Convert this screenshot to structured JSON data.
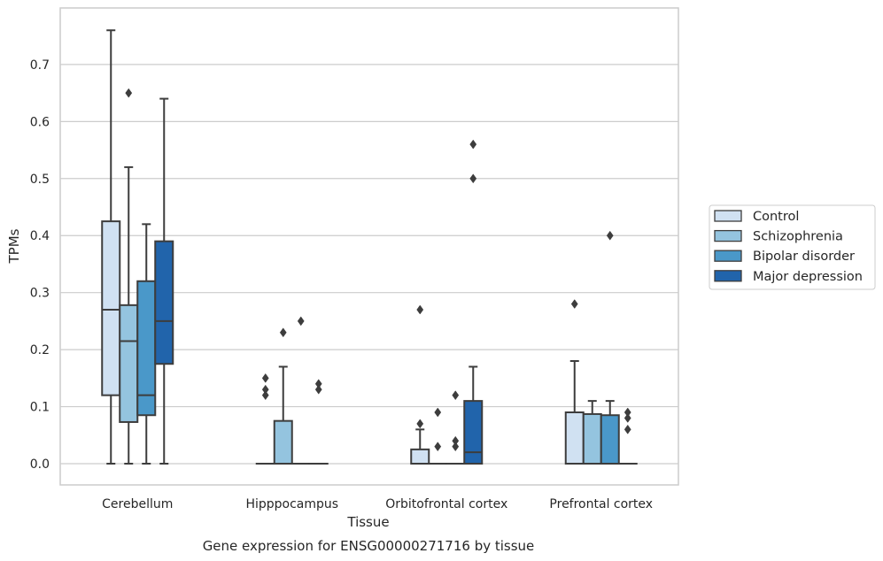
{
  "chart_data": {
    "type": "box",
    "title": "",
    "caption": "Gene expression for ENSG00000271716 by tissue",
    "xlabel": "Tissue",
    "ylabel": "TPMs",
    "ylim": [
      -0.037,
      0.798
    ],
    "yticks": [
      0.0,
      0.1,
      0.2,
      0.3,
      0.4,
      0.5,
      0.6,
      0.7
    ],
    "ytick_labels": [
      "0.0",
      "0.1",
      "0.2",
      "0.3",
      "0.4",
      "0.5",
      "0.6",
      "0.7"
    ],
    "grid": "horizontal",
    "legend_position": "right",
    "categories": [
      "Cerebellum",
      "Hipppocampus",
      "Orbitofrontal cortex",
      "Prefrontal cortex"
    ],
    "series": [
      {
        "name": "Control",
        "color": "#d0e1f2",
        "boxes": [
          {
            "whislo": 0.0,
            "q1": 0.12,
            "med": 0.27,
            "q3": 0.425,
            "whishi": 0.76,
            "fliers": []
          },
          {
            "whislo": 0.0,
            "q1": 0.0,
            "med": 0.0,
            "q3": 0.0,
            "whishi": 0.0,
            "fliers": [
              0.12,
              0.13,
              0.15
            ]
          },
          {
            "whislo": 0.0,
            "q1": 0.0,
            "med": 0.0,
            "q3": 0.025,
            "whishi": 0.06,
            "fliers": [
              0.07,
              0.27
            ]
          },
          {
            "whislo": 0.0,
            "q1": 0.0,
            "med": 0.0,
            "q3": 0.09,
            "whishi": 0.18,
            "fliers": [
              0.28
            ]
          }
        ]
      },
      {
        "name": "Schizophrenia",
        "color": "#94c4df",
        "boxes": [
          {
            "whislo": 0.0,
            "q1": 0.073,
            "med": 0.215,
            "q3": 0.278,
            "whishi": 0.52,
            "fliers": [
              0.65
            ]
          },
          {
            "whislo": 0.0,
            "q1": 0.0,
            "med": 0.0,
            "q3": 0.075,
            "whishi": 0.17,
            "fliers": [
              0.23
            ]
          },
          {
            "whislo": 0.0,
            "q1": 0.0,
            "med": 0.0,
            "q3": 0.0,
            "whishi": 0.0,
            "fliers": [
              0.03,
              0.09
            ]
          },
          {
            "whislo": 0.0,
            "q1": 0.0,
            "med": 0.0,
            "q3": 0.087,
            "whishi": 0.11,
            "fliers": []
          }
        ]
      },
      {
        "name": "Bipolar disorder",
        "color": "#4a98c9",
        "boxes": [
          {
            "whislo": 0.0,
            "q1": 0.085,
            "med": 0.12,
            "q3": 0.32,
            "whishi": 0.42,
            "fliers": []
          },
          {
            "whislo": 0.0,
            "q1": 0.0,
            "med": 0.0,
            "q3": 0.0,
            "whishi": 0.0,
            "fliers": [
              0.25
            ]
          },
          {
            "whislo": 0.0,
            "q1": 0.0,
            "med": 0.0,
            "q3": 0.0,
            "whishi": 0.0,
            "fliers": [
              0.03,
              0.04,
              0.12
            ]
          },
          {
            "whislo": 0.0,
            "q1": 0.0,
            "med": 0.0,
            "q3": 0.085,
            "whishi": 0.11,
            "fliers": [
              0.4
            ]
          }
        ]
      },
      {
        "name": "Major depression",
        "color": "#2164ab",
        "boxes": [
          {
            "whislo": 0.0,
            "q1": 0.175,
            "med": 0.25,
            "q3": 0.39,
            "whishi": 0.64,
            "fliers": []
          },
          {
            "whislo": 0.0,
            "q1": 0.0,
            "med": 0.0,
            "q3": 0.0,
            "whishi": 0.0,
            "fliers": [
              0.13,
              0.14
            ]
          },
          {
            "whislo": 0.0,
            "q1": 0.0,
            "med": 0.02,
            "q3": 0.11,
            "whishi": 0.17,
            "fliers": [
              0.5,
              0.56
            ]
          },
          {
            "whislo": 0.0,
            "q1": 0.0,
            "med": 0.0,
            "q3": 0.0,
            "whishi": 0.0,
            "fliers": [
              0.06,
              0.08,
              0.09
            ]
          }
        ]
      }
    ]
  }
}
